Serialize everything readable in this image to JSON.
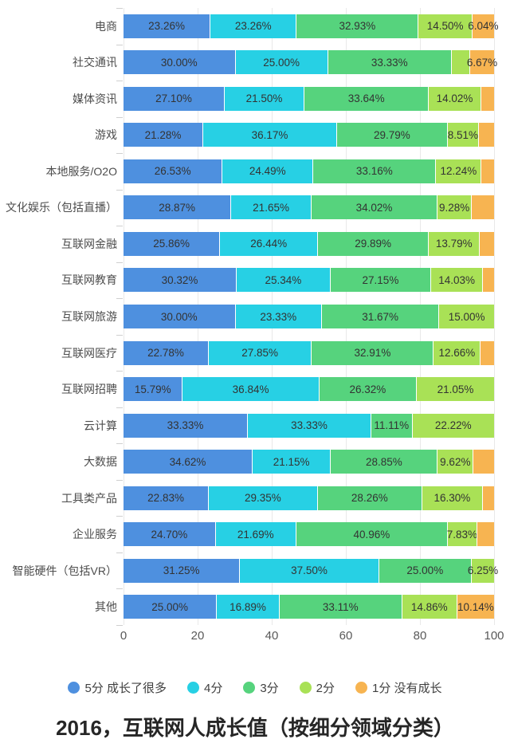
{
  "chart_data": {
    "type": "bar",
    "orientation": "horizontal",
    "stacked": true,
    "title": "2016，互联网人成长值（按细分领域分类）",
    "value_unit": "%",
    "xlim": [
      0,
      100
    ],
    "x_ticks": [
      "0",
      "20",
      "40",
      "60",
      "80",
      "100"
    ],
    "grid": true,
    "legend_position": "bottom",
    "categories": [
      "电商",
      "社交通讯",
      "媒体资讯",
      "游戏",
      "本地服务/O2O",
      "文化娱乐（包括直播）",
      "互联网金融",
      "互联网教育",
      "互联网旅游",
      "互联网医疗",
      "互联网招聘",
      "云计算",
      "大数据",
      "工具类产品",
      "企业服务",
      "智能硬件（包括VR）",
      "其他"
    ],
    "series": [
      {
        "name": "5分 成长了很多",
        "color": "#4E90DF",
        "values": [
          23.26,
          30.0,
          27.1,
          21.28,
          26.53,
          28.87,
          25.86,
          30.32,
          30.0,
          22.78,
          15.79,
          33.33,
          34.62,
          22.83,
          24.7,
          31.25,
          25.0
        ],
        "labels": [
          "23.26%",
          "30.00%",
          "27.10%",
          "21.28%",
          "26.53%",
          "28.87%",
          "25.86%",
          "30.32%",
          "30.00%",
          "22.78%",
          "15.79%",
          "33.33%",
          "34.62%",
          "22.83%",
          "24.70%",
          "31.25%",
          "25.00%"
        ]
      },
      {
        "name": "4分",
        "color": "#27D0E4",
        "values": [
          23.26,
          25.0,
          21.5,
          36.17,
          24.49,
          21.65,
          26.44,
          25.34,
          23.33,
          27.85,
          36.84,
          33.33,
          21.15,
          29.35,
          21.69,
          37.5,
          16.89
        ],
        "labels": [
          "23.26%",
          "25.00%",
          "21.50%",
          "36.17%",
          "24.49%",
          "21.65%",
          "26.44%",
          "25.34%",
          "23.33%",
          "27.85%",
          "36.84%",
          "33.33%",
          "21.15%",
          "29.35%",
          "21.69%",
          "37.50%",
          "16.89%"
        ]
      },
      {
        "name": "3分",
        "color": "#56D37D",
        "values": [
          32.93,
          33.33,
          33.64,
          29.79,
          33.16,
          34.02,
          29.89,
          27.15,
          31.67,
          32.91,
          26.32,
          11.11,
          28.85,
          28.26,
          40.96,
          25.0,
          33.11
        ],
        "labels": [
          "32.93%",
          "33.33%",
          "33.64%",
          "29.79%",
          "33.16%",
          "34.02%",
          "29.89%",
          "27.15%",
          "31.67%",
          "32.91%",
          "26.32%",
          "11.11%",
          "28.85%",
          "28.26%",
          "40.96%",
          "25.00%",
          "33.11%"
        ]
      },
      {
        "name": "2分",
        "color": "#A9E156",
        "values": [
          14.5,
          5.0,
          14.02,
          8.51,
          12.24,
          9.28,
          13.79,
          14.03,
          15.0,
          12.66,
          21.05,
          22.22,
          9.62,
          16.3,
          7.83,
          6.25,
          14.86
        ],
        "labels": [
          "14.50%",
          "",
          "14.02%",
          "8.51%",
          "12.24%",
          "9.28%",
          "13.79%",
          "14.03%",
          "15.00%",
          "12.66%",
          "21.05%",
          "22.22%",
          "9.62%",
          "16.30%",
          "7.83%",
          "6.25%",
          "14.86%"
        ]
      },
      {
        "name": "1分 没有成长",
        "color": "#F7B451",
        "values": [
          6.04,
          6.67,
          3.74,
          4.25,
          3.58,
          6.18,
          4.02,
          3.16,
          0,
          3.8,
          0,
          0,
          5.76,
          3.26,
          4.82,
          0,
          10.14
        ],
        "labels": [
          "6.04%",
          "6.67%",
          "",
          "",
          "",
          "",
          "",
          "",
          "",
          "",
          "",
          "",
          "",
          "",
          "",
          "",
          "10.14%"
        ]
      }
    ]
  },
  "legend": {
    "items": [
      {
        "label": "5分 成长了很多",
        "color": "#4E90DF"
      },
      {
        "label": "4分",
        "color": "#27D0E4"
      },
      {
        "label": "3分",
        "color": "#56D37D"
      },
      {
        "label": "2分",
        "color": "#A9E156"
      },
      {
        "label": "1分 没有成长",
        "color": "#F7B451"
      }
    ]
  },
  "colors": {
    "grid_line": "#E9E9E9",
    "axis_tick": "#CFCFCF",
    "axis_label_text": "#595959",
    "category_label_text": "#4D4D4D",
    "value_label_text": "#333333",
    "title_text": "#262626",
    "background": "#FFFFFF"
  }
}
